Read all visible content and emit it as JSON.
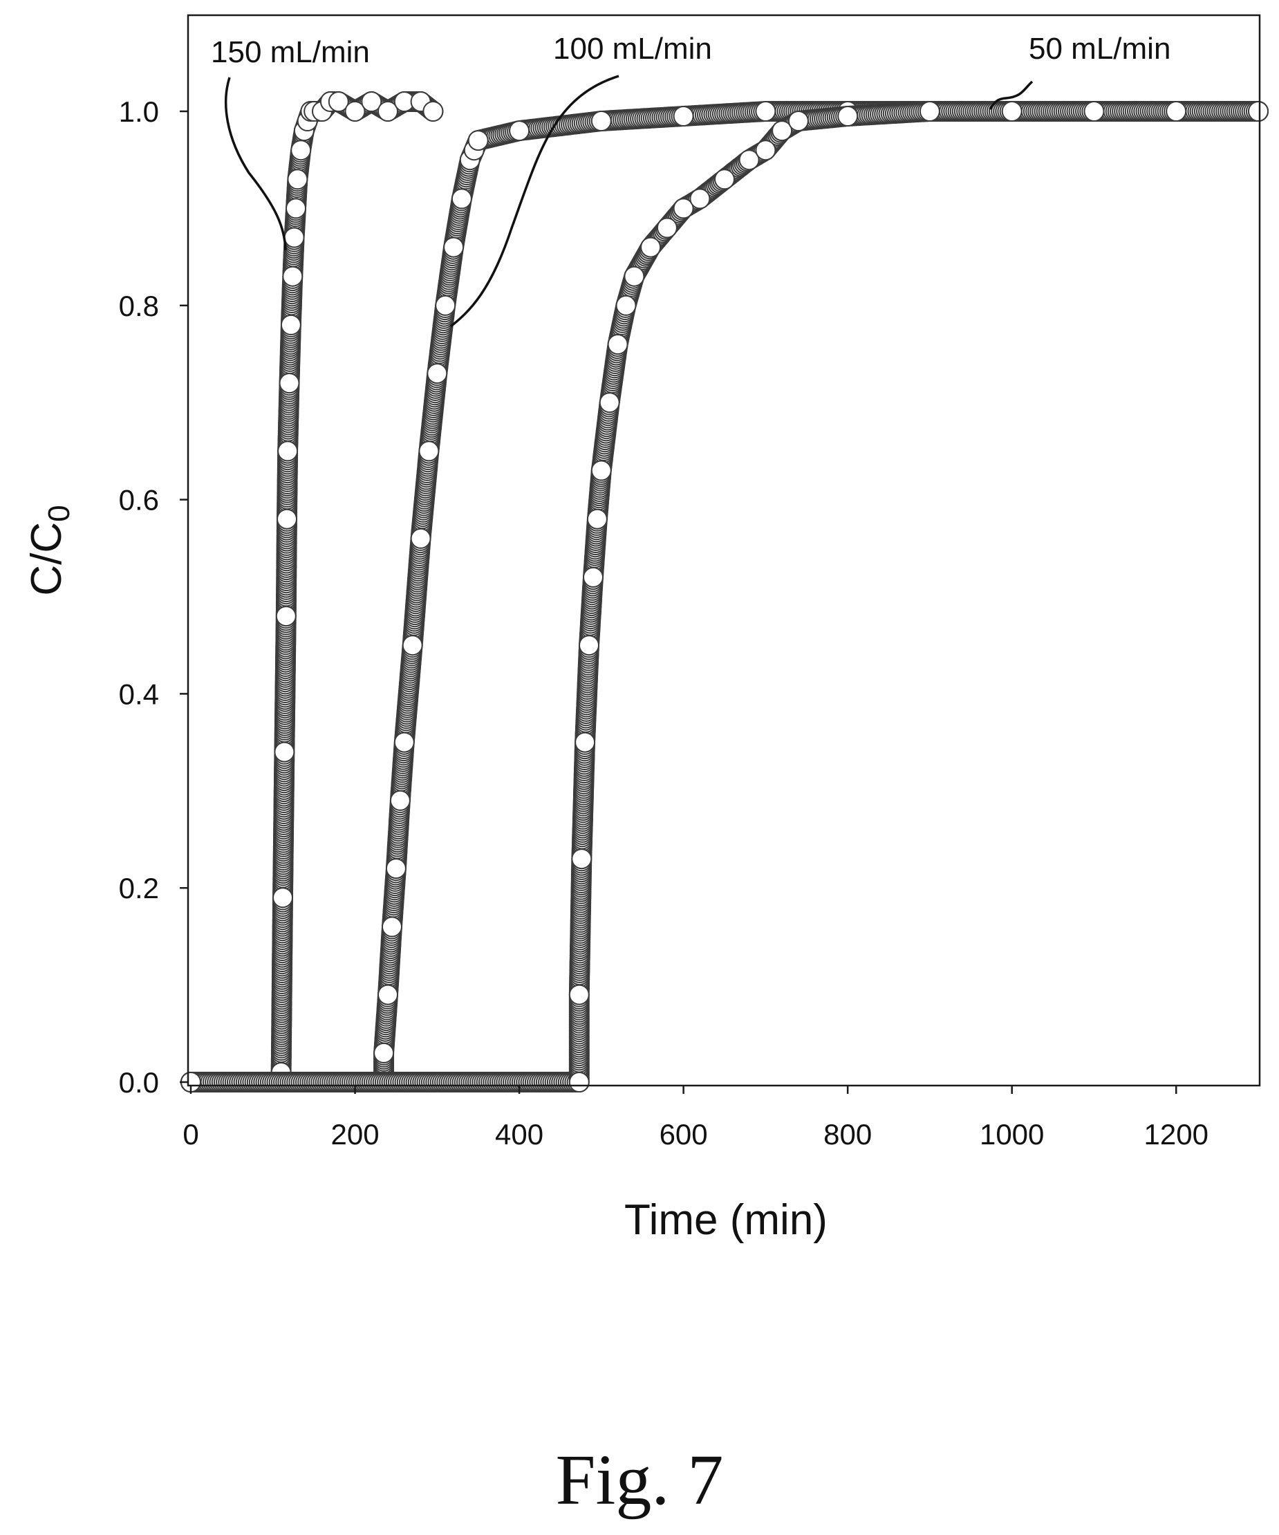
{
  "chart_data": {
    "type": "scatter",
    "xlabel": "Time (min)",
    "ylabel_main": "C/C",
    "ylabel_sub": "0",
    "xlim": [
      0,
      1300
    ],
    "ylim": [
      0,
      1.1
    ],
    "xticks": [
      0,
      200,
      400,
      600,
      800,
      1000,
      1200
    ],
    "yticks": [
      0.0,
      0.2,
      0.4,
      0.6,
      0.8,
      1.0
    ],
    "ytick_labels": [
      "0.0",
      "0.2",
      "0.4",
      "0.6",
      "0.8",
      "1.0"
    ],
    "grid": false,
    "marker": "open-circle",
    "series": [
      {
        "x": [
          0,
          110,
          110,
          112,
          114,
          116,
          117,
          118,
          120,
          122,
          124,
          126,
          128,
          130,
          134,
          138,
          142,
          146,
          150,
          160,
          170,
          180,
          200,
          220,
          240,
          260,
          280,
          295
        ],
        "y": [
          0.0,
          0.0,
          0.01,
          0.19,
          0.34,
          0.48,
          0.58,
          0.65,
          0.72,
          0.78,
          0.83,
          0.87,
          0.9,
          0.93,
          0.96,
          0.98,
          0.99,
          1.0,
          1.0,
          1.0,
          1.01,
          1.01,
          1.0,
          1.01,
          1.0,
          1.01,
          1.01,
          1.0
        ]
      },
      {
        "x": [
          0,
          235,
          235,
          240,
          245,
          250,
          255,
          260,
          270,
          280,
          290,
          300,
          310,
          320,
          330,
          340,
          345,
          350,
          400,
          500,
          600,
          700,
          800,
          900,
          1000,
          1100,
          1200,
          1300
        ],
        "y": [
          0.0,
          0.0,
          0.03,
          0.09,
          0.16,
          0.22,
          0.29,
          0.35,
          0.45,
          0.56,
          0.65,
          0.73,
          0.8,
          0.86,
          0.91,
          0.95,
          0.96,
          0.97,
          0.98,
          0.99,
          0.995,
          1.0,
          1.0,
          1.0,
          1.0,
          1.0,
          1.0,
          1.0
        ]
      },
      {
        "x": [
          0,
          473,
          473,
          476,
          480,
          485,
          490,
          495,
          500,
          510,
          520,
          530,
          540,
          560,
          580,
          600,
          620,
          650,
          680,
          700,
          720,
          740,
          800,
          900,
          1000,
          1100,
          1200,
          1300
        ],
        "y": [
          0.0,
          0.0,
          0.09,
          0.23,
          0.35,
          0.45,
          0.52,
          0.58,
          0.63,
          0.7,
          0.76,
          0.8,
          0.83,
          0.86,
          0.88,
          0.9,
          0.91,
          0.93,
          0.95,
          0.96,
          0.98,
          0.99,
          0.995,
          1.0,
          1.0,
          1.0,
          1.0,
          1.0
        ]
      }
    ],
    "annotations": [
      {
        "text": "150 mL/min",
        "series": 0
      },
      {
        "text": "100 mL/min",
        "series": 1
      },
      {
        "text": "50 mL/min",
        "series": 2
      }
    ]
  },
  "caption": "Fig. 7"
}
